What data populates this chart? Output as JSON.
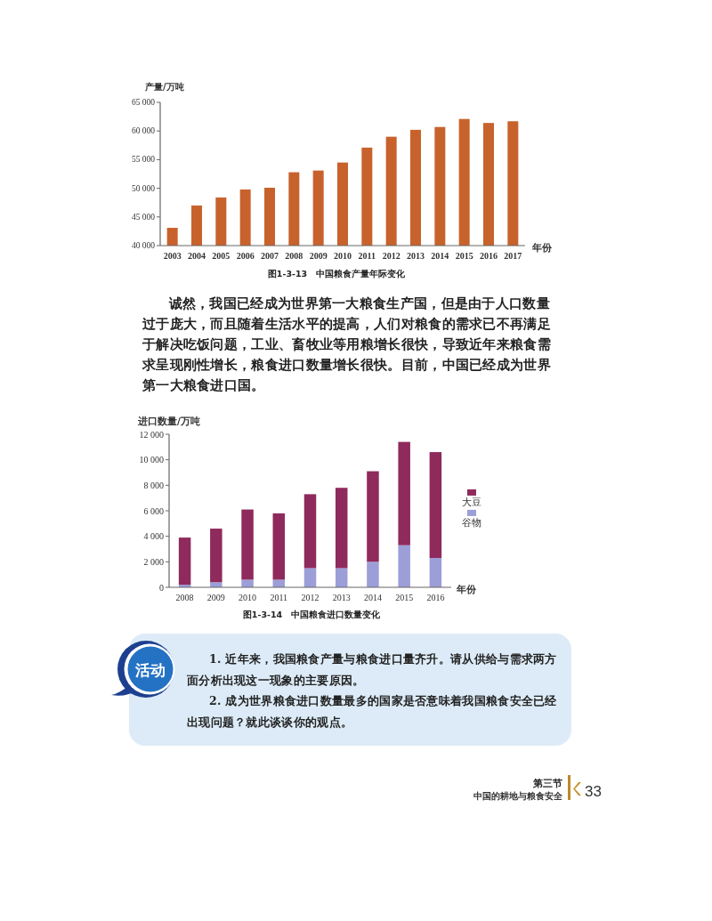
{
  "chart_data": [
    {
      "type": "bar",
      "ylabel": "产量/万吨",
      "xlabel": "年份",
      "categories": [
        "2003",
        "2004",
        "2005",
        "2006",
        "2007",
        "2008",
        "2009",
        "2010",
        "2011",
        "2012",
        "2013",
        "2014",
        "2015",
        "2016",
        "2017"
      ],
      "values": [
        43100,
        47000,
        48400,
        49800,
        50100,
        52800,
        53100,
        54500,
        57100,
        59000,
        60200,
        60700,
        62100,
        61400,
        61700
      ],
      "color": "#c8622c",
      "ylim": [
        40000,
        65000
      ],
      "yticks": [
        {
          "value": 40000,
          "label": "40 000"
        },
        {
          "value": 45000,
          "label": "45 000"
        },
        {
          "value": 50000,
          "label": "50 000"
        },
        {
          "value": 55000,
          "label": "55 000"
        },
        {
          "value": 60000,
          "label": "60 000"
        },
        {
          "value": 65000,
          "label": "65 000"
        }
      ],
      "annotations": [
        "图1-3-13　中国粮食产量年际变化"
      ]
    },
    {
      "type": "other",
      "annotations": [
        "诚然，我国已经成为世界第一大粮食生产国，但是由于人口数量过于庞大，而且随着生活水平的提高，人们对粮食的需求已不再满足于解决吃饭问题，工业、畜牧业等用粮增长很快，导致近年来粮食需求呈现刚性增长，粮食进口数量增长很快。目前，中国已经成为世界第一大粮食进口国。"
      ]
    },
    {
      "type": "bar",
      "stacked": true,
      "ylabel": "进口数量/万吨",
      "xlabel": "年份",
      "categories": [
        "2008",
        "2009",
        "2010",
        "2011",
        "2012",
        "2013",
        "2014",
        "2015",
        "2016"
      ],
      "series": [
        {
          "name": "谷物",
          "color": "#9c9ed8",
          "values": [
            200,
            400,
            600,
            600,
            1500,
            1500,
            2000,
            3300,
            2300
          ]
        },
        {
          "name": "大豆",
          "color": "#8f2a5c",
          "values": [
            3700,
            4200,
            5500,
            5200,
            5800,
            6300,
            7100,
            8100,
            8300
          ]
        }
      ],
      "ylim": [
        0,
        12000
      ],
      "yticks": [
        0,
        {
          "value": 2000,
          "label": "2 000"
        },
        {
          "value": 4000,
          "label": "4 000"
        },
        {
          "value": 6000,
          "label": "6 000"
        },
        {
          "value": 8000,
          "label": "8 000"
        },
        {
          "value": 10000,
          "label": "10 000"
        },
        {
          "value": 12000,
          "label": "12 000"
        }
      ],
      "legend": "right",
      "annotations": [
        "图1-3-14　中国粮食进口数量变化"
      ]
    },
    {
      "type": "other",
      "title": "活动",
      "annotations": [
        "1. 近年来，我国粮食产量与粮食进口量齐升。请从供给与需求两方面分析出现这一现象的主要原因。",
        "2. 成为世界粮食进口数量最多的国家是否意味着我国粮食安全已经出现问题？就此谈谈你的观点。"
      ]
    },
    {
      "type": "other",
      "annotations": [
        "第三节",
        "中国的耕地与粮食安全",
        "33"
      ]
    }
  ]
}
